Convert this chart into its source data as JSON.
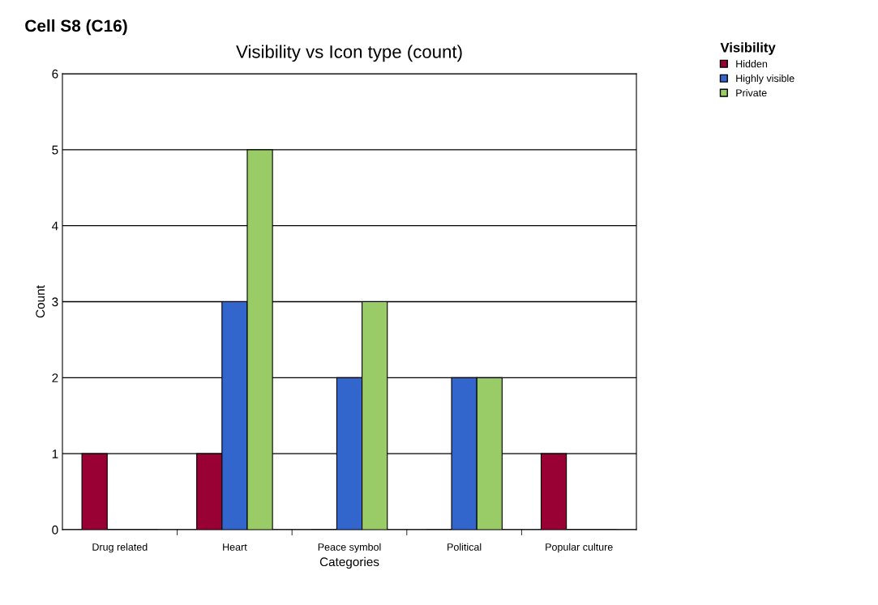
{
  "chart_data": {
    "type": "bar",
    "title": "Visibility vs Icon type (count)",
    "annotations": [
      "Cell S8 (C16)"
    ],
    "xlabel": "Categories",
    "ylabel": "Count",
    "legend_title": "Visibility",
    "categories": [
      "Drug related",
      "Heart",
      "Peace symbol",
      "Political",
      "Popular culture"
    ],
    "series": [
      {
        "name": "Hidden",
        "color": "#990033",
        "values": [
          1,
          1,
          0,
          0,
          1
        ]
      },
      {
        "name": "Highly visible",
        "color": "#3366cc",
        "values": [
          0,
          3,
          2,
          2,
          0
        ]
      },
      {
        "name": "Private",
        "color": "#99cc66",
        "values": [
          0,
          5,
          3,
          2,
          0
        ]
      }
    ],
    "ylim": [
      0,
      6
    ],
    "yticks": [
      0,
      1,
      2,
      3,
      4,
      5,
      6
    ],
    "grid": "y",
    "legend": "top right"
  }
}
